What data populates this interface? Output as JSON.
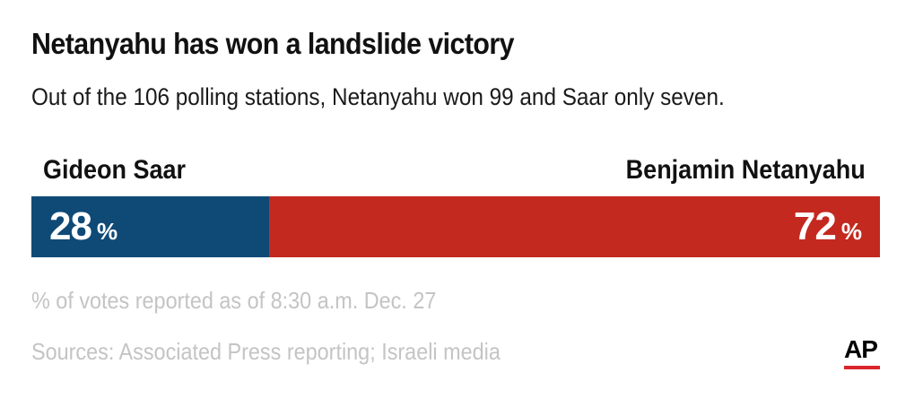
{
  "title": "Netanyahu has won a landslide victory",
  "subtitle": "Out of the 106 polling stations, Netanyahu won 99 and Saar only seven.",
  "chart_data": {
    "type": "bar",
    "orientation": "horizontal-stacked",
    "unit": "%",
    "series": [
      {
        "name": "Gideon Saar",
        "value": 28,
        "color": "#0f4a77"
      },
      {
        "name": "Benjamin Netanyahu",
        "value": 72,
        "color": "#c3291f"
      }
    ],
    "total": 100
  },
  "notes": {
    "reported": "% of votes reported as of 8:30 a.m. Dec. 27",
    "sources": "Sources: Associated Press reporting; Israeli media"
  },
  "logo": {
    "text": "AP",
    "accent_color": "#d9252c"
  }
}
